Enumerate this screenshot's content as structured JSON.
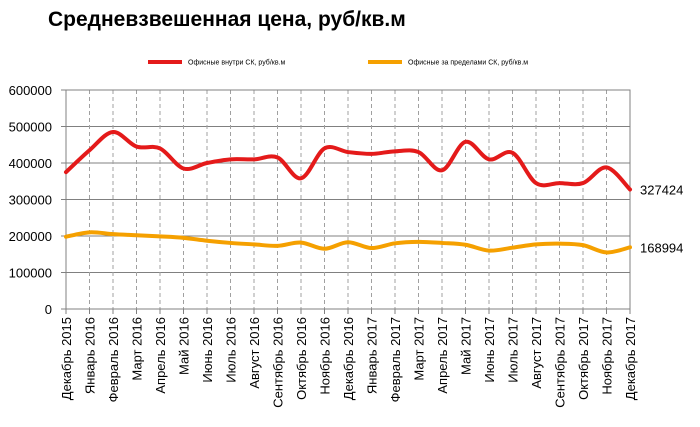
{
  "chart_data": {
    "type": "line",
    "title": "Средневзвешенная цена, руб/кв.м",
    "xlabel": "",
    "ylabel": "",
    "ylim": [
      0,
      600000
    ],
    "yticks": [
      0,
      100000,
      200000,
      300000,
      400000,
      500000,
      600000
    ],
    "ytick_labels": [
      "0",
      "100000",
      "200000",
      "300000",
      "400000",
      "500000",
      "600000"
    ],
    "grid": "vertical dashed, horizontal solid",
    "legend": "top",
    "categories": [
      "Декабрь 2015",
      "Январь 2016",
      "Февраль 2016",
      "Март 2016",
      "Апрель 2016",
      "Май 2016",
      "Июнь 2016",
      "Июль 2016",
      "Август 2016",
      "Сентябрь 2016",
      "Октябрь 2016",
      "Ноябрь 2016",
      "Декабрь 2016",
      "Январь 2017",
      "Февраль 2017",
      "Март 2017",
      "Апрель 2017",
      "Май 2017",
      "Июнь 2017",
      "Июль 2017",
      "Август 2017",
      "Сентябрь 2017",
      "Октябрь 2017",
      "Ноябрь 2017",
      "Декабрь 2017"
    ],
    "series": [
      {
        "name": "Офисные внутри СК, руб/кв.м",
        "color": "#e41a1a",
        "values": [
          375000,
          435000,
          485000,
          445000,
          440000,
          385000,
          400000,
          410000,
          410000,
          415000,
          358000,
          440000,
          430000,
          425000,
          432000,
          430000,
          380000,
          458000,
          410000,
          428000,
          345000,
          345000,
          345000,
          388000,
          327424
        ],
        "end_label": "327424"
      },
      {
        "name": "Офисные за пределами СК, руб/кв.м",
        "color": "#f5a000",
        "values": [
          198000,
          210000,
          205000,
          202000,
          199000,
          195000,
          187000,
          181000,
          177000,
          173000,
          182000,
          165000,
          183000,
          167000,
          180000,
          184000,
          181000,
          176000,
          160000,
          168000,
          177000,
          179000,
          175000,
          155000,
          168994
        ],
        "end_label": "168994"
      }
    ]
  }
}
